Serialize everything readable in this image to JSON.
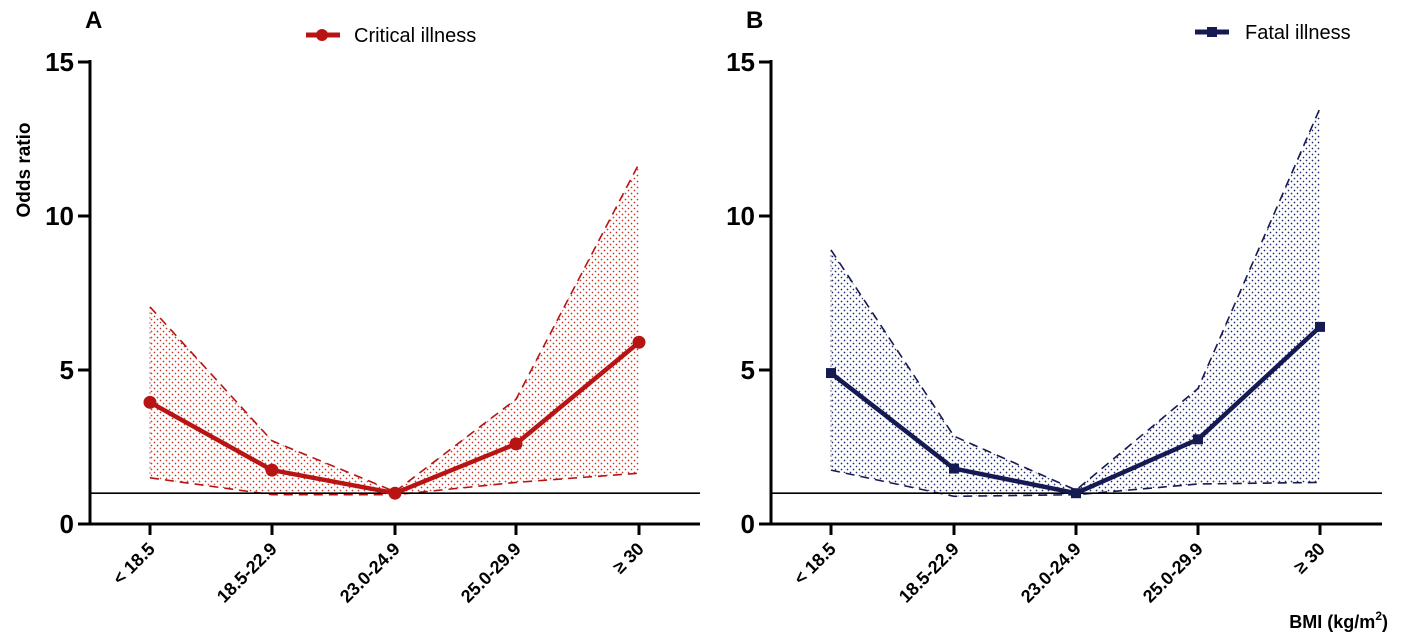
{
  "chart_data": [
    {
      "type": "line",
      "panel": "A",
      "categories": [
        "< 18.5",
        "18.5-22.9",
        "23.0-24.9",
        "25.0-29.9",
        "≥ 30"
      ],
      "series": [
        {
          "name": "Critical illness",
          "values": [
            3.95,
            1.75,
            1.0,
            2.6,
            5.9
          ],
          "ci_upper": [
            7.05,
            2.7,
            1.05,
            4.05,
            11.7
          ],
          "ci_lower": [
            1.5,
            0.95,
            0.95,
            1.35,
            1.65
          ],
          "color": "#b81414",
          "marker": "circle"
        }
      ],
      "reference_line": 1,
      "ylabel": "Odds ratio",
      "xlabel": "",
      "ylim": [
        0,
        15
      ],
      "yticks": [
        0,
        5,
        10,
        15
      ],
      "legend": "top-center"
    },
    {
      "type": "line",
      "panel": "B",
      "categories": [
        "< 18.5",
        "18.5-22.9",
        "23.0-24.9",
        "25.0-29.9",
        "≥ 30"
      ],
      "series": [
        {
          "name": "Fatal illness",
          "values": [
            4.9,
            1.8,
            1.0,
            2.75,
            6.4
          ],
          "ci_upper": [
            8.9,
            2.85,
            1.1,
            4.4,
            13.5
          ],
          "ci_lower": [
            1.75,
            0.9,
            0.95,
            1.3,
            1.35
          ],
          "color": "#161a52",
          "marker": "square"
        }
      ],
      "reference_line": 1,
      "ylabel": "",
      "xlabel": "BMI (kg/m²)",
      "ylim": [
        0,
        15
      ],
      "yticks": [
        0,
        5,
        10,
        15
      ],
      "legend": "top-right"
    }
  ]
}
